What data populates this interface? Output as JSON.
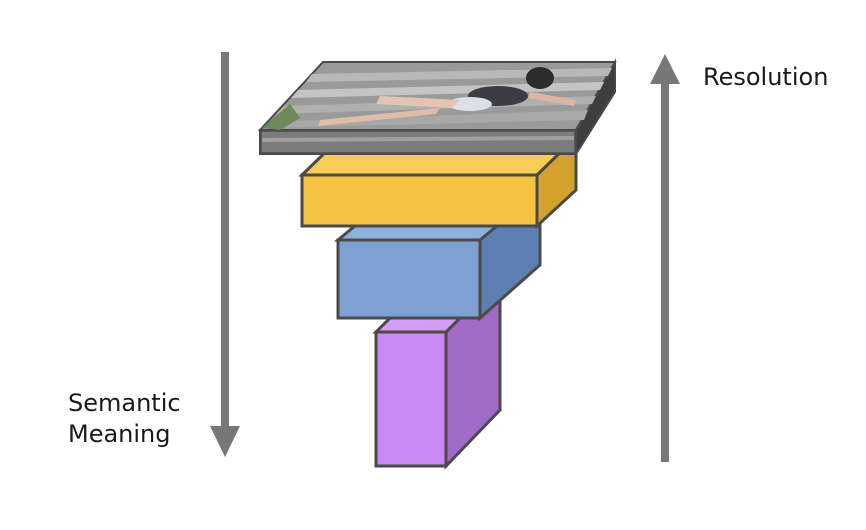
{
  "labels": {
    "semantic_line1": "Semantic",
    "semantic_line2": "Meaning",
    "resolution": "Resolution"
  },
  "arrows": {
    "semantic": {
      "direction": "down",
      "color": "#777777"
    },
    "resolution": {
      "direction": "up",
      "color": "#777777"
    }
  },
  "blocks": [
    {
      "name": "image-layer",
      "front": "#6e6e6e",
      "top": "#888888",
      "side": "#3e3e3e",
      "outline": "#4a4a4a"
    },
    {
      "name": "yellow-block",
      "front": "#f5c242",
      "top": "#f7cd55",
      "side": "#d4a12c",
      "outline": "#4a4a4a"
    },
    {
      "name": "blue-block",
      "front": "#7ea0d2",
      "top": "#8fb0dd",
      "side": "#5e7fb2",
      "outline": "#4a4a4a"
    },
    {
      "name": "purple-block",
      "front": "#cc88f4",
      "top": "#d59ef6",
      "side": "#a06ac8",
      "outline": "#4a4a4a"
    }
  ],
  "photo": {
    "description_icon": "photo-of-person-sitting-icon",
    "background": "#9a9a9a",
    "stripe": "#b8b8b8"
  }
}
